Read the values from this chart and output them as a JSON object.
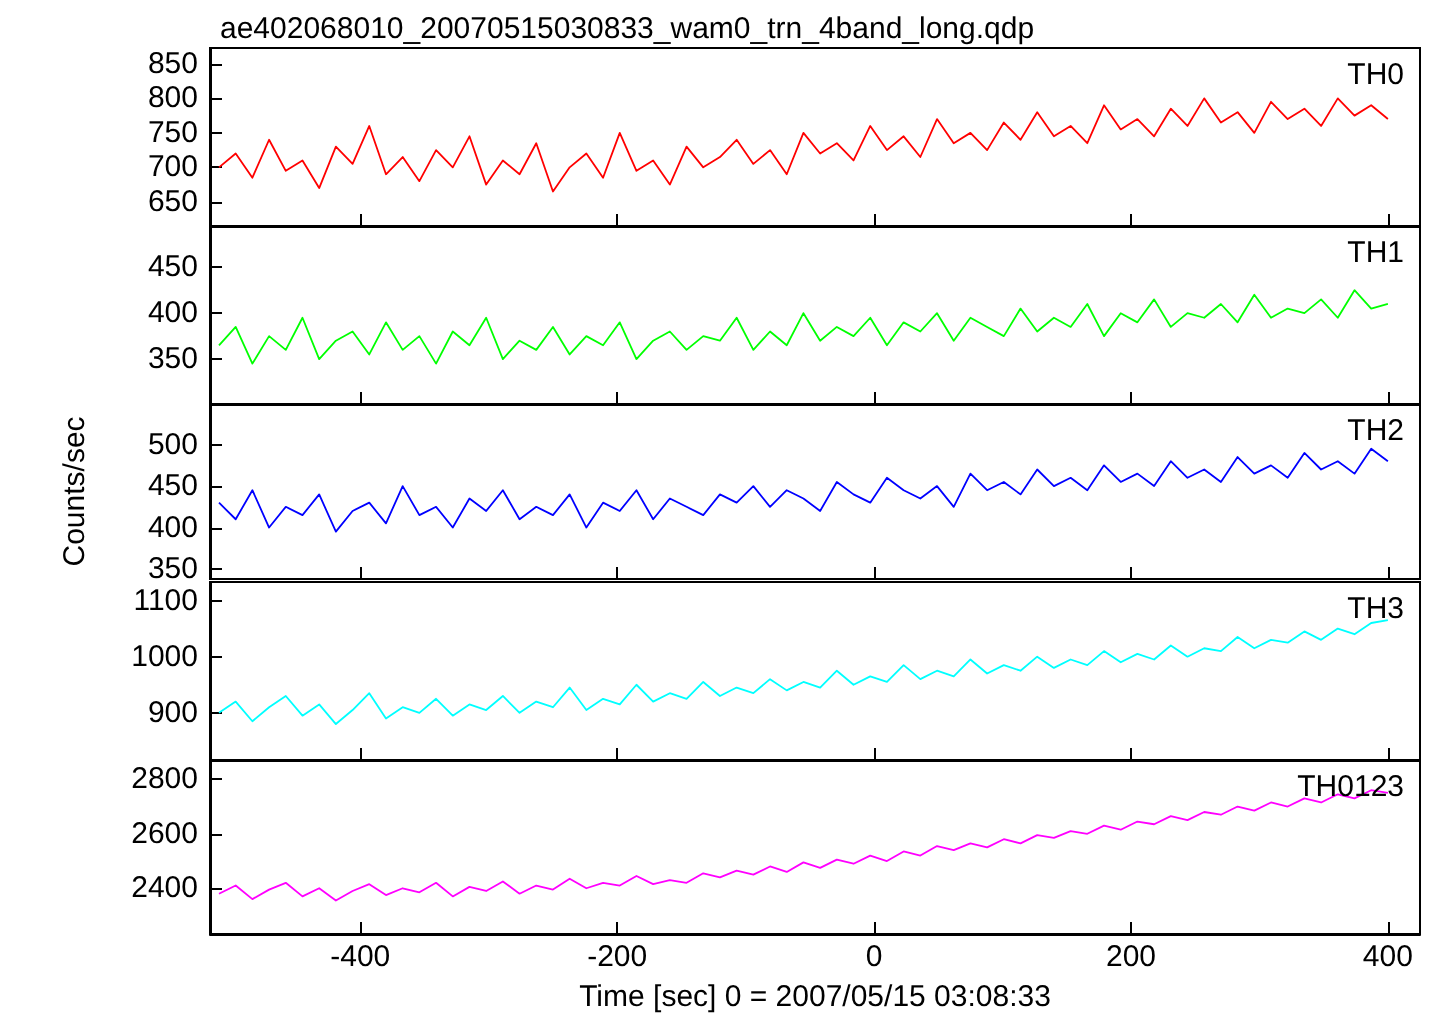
{
  "chart_data": [
    {
      "type": "line",
      "title": "ae402068010_20070515030833_wam0_trn_4band_long.qdp",
      "tick_labels": "y",
      "xlim": [
        -517,
        425
      ],
      "xticks": [
        -400,
        -200,
        0,
        200,
        400
      ],
      "ylim": [
        615,
        873
      ],
      "yticks": [
        650,
        700,
        750,
        800,
        850
      ],
      "x": [
        -510,
        -497,
        -484,
        -471,
        -458,
        -445,
        -432,
        -419,
        -406,
        -393,
        -380,
        -367,
        -354,
        -341,
        -328,
        -315,
        -302,
        -289,
        -276,
        -263,
        -250,
        -237,
        -224,
        -211,
        -198,
        -185,
        -172,
        -159,
        -146,
        -133,
        -120,
        -107,
        -94,
        -81,
        -68,
        -55,
        -42,
        -29,
        -16,
        -3,
        10,
        23,
        36,
        49,
        62,
        75,
        88,
        101,
        114,
        127,
        140,
        153,
        166,
        179,
        192,
        205,
        218,
        231,
        244,
        257,
        270,
        283,
        296,
        309,
        322,
        335,
        348,
        361,
        374,
        387,
        400
      ],
      "series": [
        {
          "name": "TH0",
          "color": "#ff0000",
          "values": [
            700,
            720,
            685,
            740,
            695,
            710,
            670,
            730,
            705,
            760,
            690,
            715,
            680,
            725,
            700,
            745,
            675,
            710,
            690,
            735,
            665,
            700,
            720,
            685,
            750,
            695,
            710,
            675,
            730,
            700,
            715,
            740,
            705,
            725,
            690,
            750,
            720,
            735,
            710,
            760,
            725,
            745,
            715,
            770,
            735,
            750,
            725,
            765,
            740,
            780,
            745,
            760,
            735,
            790,
            755,
            770,
            745,
            785,
            760,
            800,
            765,
            780,
            750,
            795,
            770,
            785,
            760,
            800,
            775,
            790,
            770
          ]
        }
      ]
    },
    {
      "type": "line",
      "tick_labels": "y",
      "xlim": [
        -517,
        425
      ],
      "xticks": [
        -400,
        -200,
        0,
        200,
        400
      ],
      "ylim": [
        301,
        495
      ],
      "yticks": [
        350,
        400,
        450
      ],
      "x": [
        -510,
        -497,
        -484,
        -471,
        -458,
        -445,
        -432,
        -419,
        -406,
        -393,
        -380,
        -367,
        -354,
        -341,
        -328,
        -315,
        -302,
        -289,
        -276,
        -263,
        -250,
        -237,
        -224,
        -211,
        -198,
        -185,
        -172,
        -159,
        -146,
        -133,
        -120,
        -107,
        -94,
        -81,
        -68,
        -55,
        -42,
        -29,
        -16,
        -3,
        10,
        23,
        36,
        49,
        62,
        75,
        88,
        101,
        114,
        127,
        140,
        153,
        166,
        179,
        192,
        205,
        218,
        231,
        244,
        257,
        270,
        283,
        296,
        309,
        322,
        335,
        348,
        361,
        374,
        387,
        400
      ],
      "series": [
        {
          "name": "TH1",
          "color": "#00ff00",
          "values": [
            365,
            385,
            345,
            375,
            360,
            395,
            350,
            370,
            380,
            355,
            390,
            360,
            375,
            345,
            380,
            365,
            395,
            350,
            370,
            360,
            385,
            355,
            375,
            365,
            390,
            350,
            370,
            380,
            360,
            375,
            370,
            395,
            360,
            380,
            365,
            400,
            370,
            385,
            375,
            395,
            365,
            390,
            380,
            400,
            370,
            395,
            385,
            375,
            405,
            380,
            395,
            385,
            410,
            375,
            400,
            390,
            415,
            385,
            400,
            395,
            410,
            390,
            420,
            395,
            405,
            400,
            415,
            395,
            425,
            405,
            410
          ]
        }
      ]
    },
    {
      "type": "line",
      "ylabel": "Counts/sec",
      "tick_labels": "y",
      "xlim": [
        -517,
        425
      ],
      "xticks": [
        -400,
        -200,
        0,
        200,
        400
      ],
      "ylim": [
        338,
        549
      ],
      "yticks": [
        350,
        400,
        450,
        500
      ],
      "x": [
        -510,
        -497,
        -484,
        -471,
        -458,
        -445,
        -432,
        -419,
        -406,
        -393,
        -380,
        -367,
        -354,
        -341,
        -328,
        -315,
        -302,
        -289,
        -276,
        -263,
        -250,
        -237,
        -224,
        -211,
        -198,
        -185,
        -172,
        -159,
        -146,
        -133,
        -120,
        -107,
        -94,
        -81,
        -68,
        -55,
        -42,
        -29,
        -16,
        -3,
        10,
        23,
        36,
        49,
        62,
        75,
        88,
        101,
        114,
        127,
        140,
        153,
        166,
        179,
        192,
        205,
        218,
        231,
        244,
        257,
        270,
        283,
        296,
        309,
        322,
        335,
        348,
        361,
        374,
        387,
        400
      ],
      "series": [
        {
          "name": "TH2",
          "color": "#0000ff",
          "values": [
            430,
            410,
            445,
            400,
            425,
            415,
            440,
            395,
            420,
            430,
            405,
            450,
            415,
            425,
            400,
            435,
            420,
            445,
            410,
            425,
            415,
            440,
            400,
            430,
            420,
            445,
            410,
            435,
            425,
            415,
            440,
            430,
            450,
            425,
            445,
            435,
            420,
            455,
            440,
            430,
            460,
            445,
            435,
            450,
            425,
            465,
            445,
            455,
            440,
            470,
            450,
            460,
            445,
            475,
            455,
            465,
            450,
            480,
            460,
            470,
            455,
            485,
            465,
            475,
            460,
            490,
            470,
            480,
            465,
            495,
            480
          ]
        }
      ]
    },
    {
      "type": "line",
      "tick_labels": "y",
      "xlim": [
        -517,
        425
      ],
      "xticks": [
        -400,
        -200,
        0,
        200,
        400
      ],
      "ylim": [
        816,
        1133
      ],
      "yticks": [
        900,
        1000,
        1100
      ],
      "x": [
        -510,
        -497,
        -484,
        -471,
        -458,
        -445,
        -432,
        -419,
        -406,
        -393,
        -380,
        -367,
        -354,
        -341,
        -328,
        -315,
        -302,
        -289,
        -276,
        -263,
        -250,
        -237,
        -224,
        -211,
        -198,
        -185,
        -172,
        -159,
        -146,
        -133,
        -120,
        -107,
        -94,
        -81,
        -68,
        -55,
        -42,
        -29,
        -16,
        -3,
        10,
        23,
        36,
        49,
        62,
        75,
        88,
        101,
        114,
        127,
        140,
        153,
        166,
        179,
        192,
        205,
        218,
        231,
        244,
        257,
        270,
        283,
        296,
        309,
        322,
        335,
        348,
        361,
        374,
        387,
        400
      ],
      "series": [
        {
          "name": "TH3",
          "color": "#00ffff",
          "values": [
            900,
            920,
            885,
            910,
            930,
            895,
            915,
            880,
            905,
            935,
            890,
            910,
            900,
            925,
            895,
            915,
            905,
            930,
            900,
            920,
            910,
            945,
            905,
            925,
            915,
            950,
            920,
            935,
            925,
            955,
            930,
            945,
            935,
            960,
            940,
            955,
            945,
            975,
            950,
            965,
            955,
            985,
            960,
            975,
            965,
            995,
            970,
            985,
            975,
            1000,
            980,
            995,
            985,
            1010,
            990,
            1005,
            995,
            1020,
            1000,
            1015,
            1010,
            1035,
            1015,
            1030,
            1025,
            1045,
            1030,
            1050,
            1040,
            1060,
            1065
          ]
        }
      ]
    },
    {
      "type": "line",
      "xlabel": "Time [sec] 0 = 2007/05/15 03:08:33",
      "xlim": [
        -517,
        425
      ],
      "xticks": [
        -400,
        -200,
        0,
        200,
        400
      ],
      "ylim": [
        2232,
        2871
      ],
      "yticks": [
        2400,
        2600,
        2800
      ],
      "x": [
        -510,
        -497,
        -484,
        -471,
        -458,
        -445,
        -432,
        -419,
        -406,
        -393,
        -380,
        -367,
        -354,
        -341,
        -328,
        -315,
        -302,
        -289,
        -276,
        -263,
        -250,
        -237,
        -224,
        -211,
        -198,
        -185,
        -172,
        -159,
        -146,
        -133,
        -120,
        -107,
        -94,
        -81,
        -68,
        -55,
        -42,
        -29,
        -16,
        -3,
        10,
        23,
        36,
        49,
        62,
        75,
        88,
        101,
        114,
        127,
        140,
        153,
        166,
        179,
        192,
        205,
        218,
        231,
        244,
        257,
        270,
        283,
        296,
        309,
        322,
        335,
        348,
        361,
        374,
        387,
        400
      ],
      "series": [
        {
          "name": "TH0123",
          "color": "#ff00ff",
          "values": [
            2380,
            2410,
            2360,
            2395,
            2420,
            2370,
            2400,
            2355,
            2390,
            2415,
            2375,
            2400,
            2385,
            2420,
            2370,
            2405,
            2390,
            2425,
            2380,
            2410,
            2395,
            2435,
            2400,
            2420,
            2410,
            2445,
            2415,
            2430,
            2420,
            2455,
            2440,
            2465,
            2450,
            2480,
            2460,
            2495,
            2475,
            2505,
            2490,
            2520,
            2500,
            2535,
            2520,
            2555,
            2540,
            2565,
            2550,
            2580,
            2565,
            2595,
            2585,
            2610,
            2600,
            2630,
            2615,
            2645,
            2635,
            2665,
            2650,
            2680,
            2670,
            2700,
            2685,
            2715,
            2700,
            2730,
            2715,
            2745,
            2730,
            2760,
            2750
          ]
        }
      ]
    }
  ]
}
